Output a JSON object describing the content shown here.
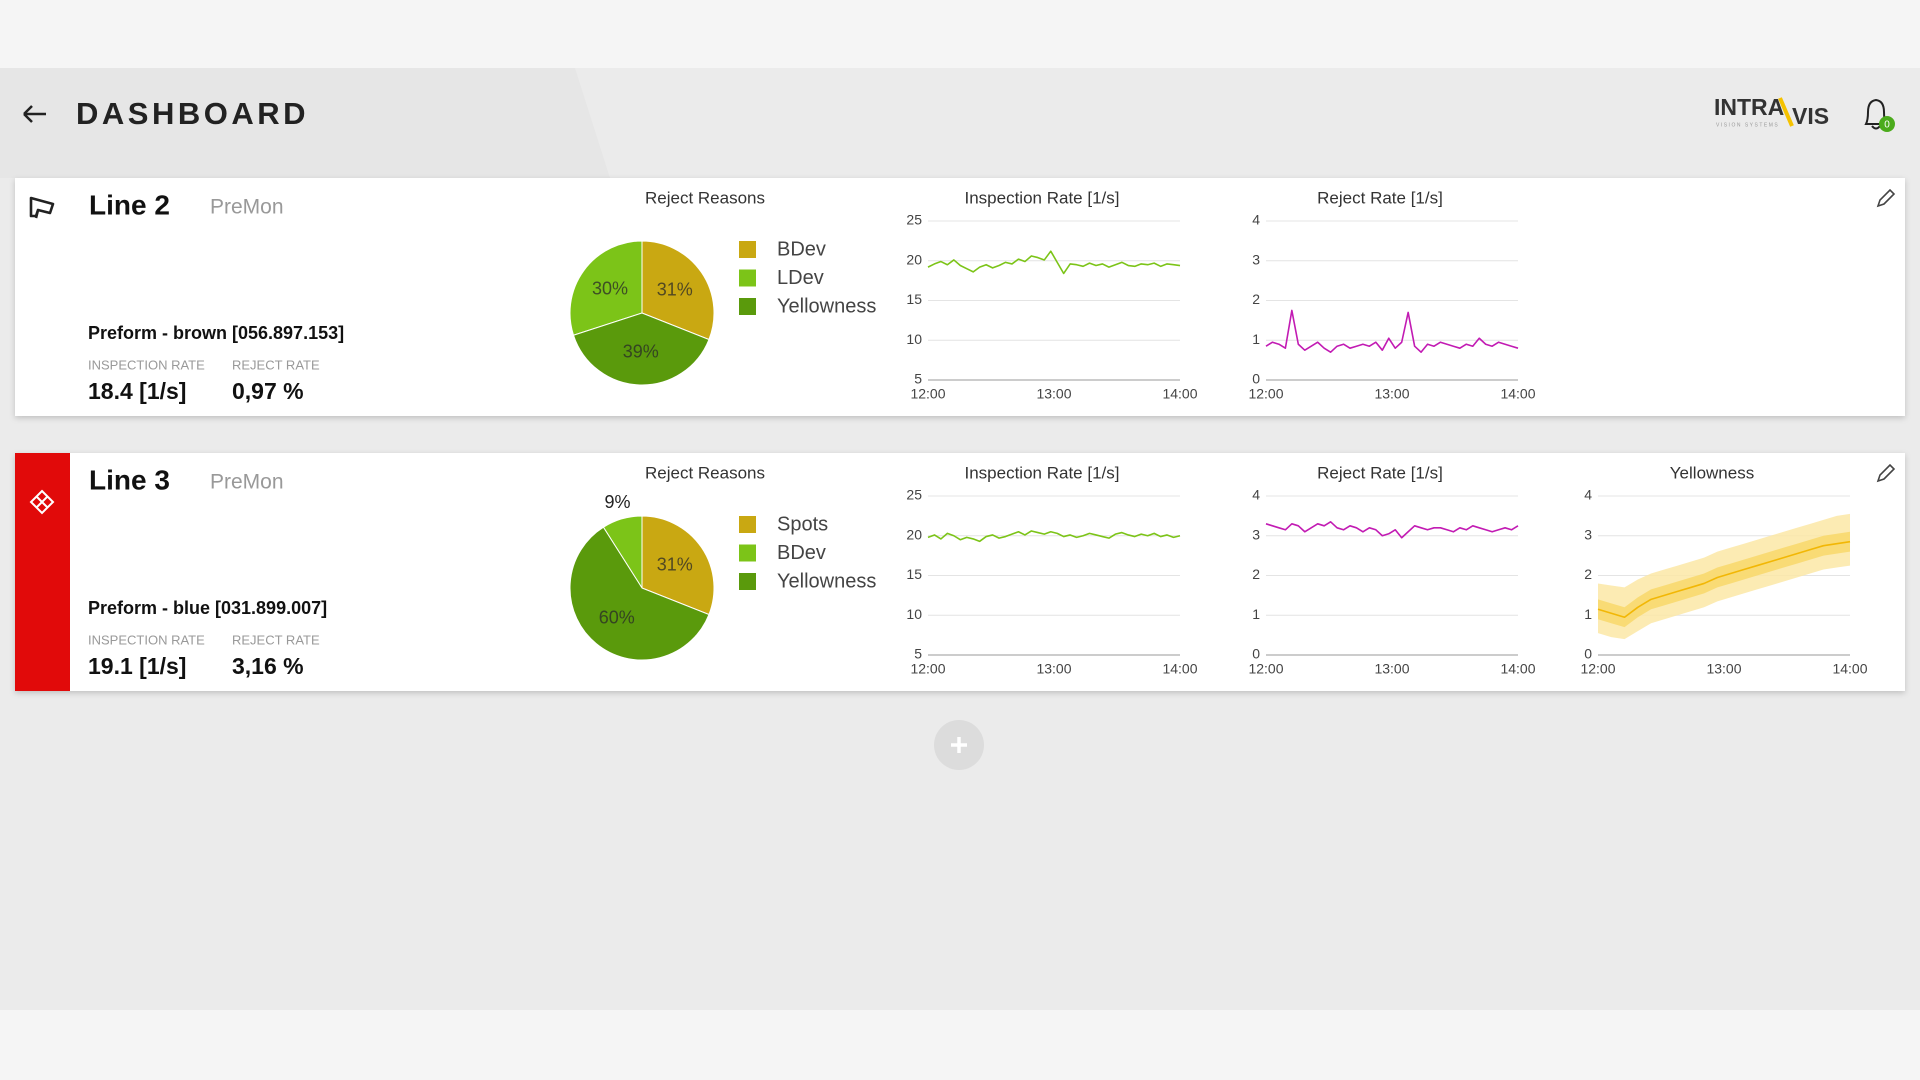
{
  "header": {
    "title": "DASHBOARD",
    "logo": "INTRA",
    "logo_accent": "VIS",
    "logo_tagline": "VISION SYSTEMS",
    "notifications": 0
  },
  "lines": [
    {
      "name": "Line 2",
      "mode": "PreMon",
      "product": "Preform - brown [056.897.153]",
      "stats": [
        {
          "label": "INSPECTION RATE",
          "value": "18.4 [1/s]"
        },
        {
          "label": "REJECT RATE",
          "value": "0,97 %"
        }
      ],
      "charts": [
        {
          "type": "pie",
          "title": "Reject Reasons",
          "categories": [
            "BDev",
            "LDev",
            "Yellowness"
          ],
          "values": [
            31,
            30,
            39
          ],
          "value_labels": [
            "31%",
            "30%",
            "39%"
          ],
          "colors": [
            "#c9a812",
            "#7cc418",
            "#5a9a0c"
          ]
        },
        {
          "type": "line",
          "title": "Inspection Rate [1/s]",
          "x_labels": [
            "12:00",
            "13:00",
            "14:00"
          ],
          "ylim": [
            5,
            25
          ],
          "yticks": [
            5,
            10,
            15,
            20,
            25
          ],
          "grid": true,
          "series": [
            {
              "color": "#7cc418",
              "values": [
                19.2,
                19.6,
                19.9,
                19.5,
                20.1,
                19.4,
                19.0,
                18.6,
                19.2,
                19.5,
                19.1,
                19.4,
                19.8,
                19.6,
                20.2,
                19.9,
                20.6,
                20.4,
                20.1,
                21.2,
                19.8,
                18.4,
                19.6,
                19.5,
                19.3,
                19.7,
                19.4,
                19.6,
                19.2,
                19.5,
                19.8,
                19.4,
                19.3,
                19.6,
                19.5,
                19.7,
                19.3,
                19.6,
                19.5,
                19.4
              ]
            }
          ]
        },
        {
          "type": "line",
          "title": "Reject Rate [1/s]",
          "x_labels": [
            "12:00",
            "13:00",
            "14:00"
          ],
          "ylim": [
            0,
            4
          ],
          "yticks": [
            0,
            1,
            2,
            3,
            4
          ],
          "grid": true,
          "series": [
            {
              "color": "#c21bb3",
              "values": [
                0.85,
                0.95,
                0.9,
                0.8,
                1.75,
                0.9,
                0.75,
                0.85,
                0.95,
                0.8,
                0.7,
                0.85,
                0.9,
                0.8,
                0.85,
                0.9,
                0.85,
                0.95,
                0.75,
                1.05,
                0.8,
                0.95,
                1.7,
                0.85,
                0.7,
                0.9,
                0.85,
                0.95,
                0.9,
                0.85,
                0.8,
                0.9,
                0.85,
                1.05,
                0.9,
                0.85,
                0.95,
                0.9,
                0.85,
                0.8
              ]
            }
          ]
        }
      ]
    },
    {
      "name": "Line 3",
      "mode": "PreMon",
      "product": "Preform - blue [031.899.007]",
      "alarm": true,
      "stats": [
        {
          "label": "INSPECTION RATE",
          "value": "19.1 [1/s]"
        },
        {
          "label": "REJECT RATE",
          "value": "3,16 %"
        }
      ],
      "charts": [
        {
          "type": "pie",
          "title": "Reject Reasons",
          "categories": [
            "Spots",
            "BDev",
            "Yellowness"
          ],
          "values": [
            31,
            9,
            60
          ],
          "value_labels": [
            "31%",
            "9%",
            "60%"
          ],
          "colors": [
            "#c9a812",
            "#7cc418",
            "#5a9a0c"
          ]
        },
        {
          "type": "line",
          "title": "Inspection Rate [1/s]",
          "x_labels": [
            "12:00",
            "13:00",
            "14:00"
          ],
          "ylim": [
            5,
            25
          ],
          "yticks": [
            5,
            10,
            15,
            20,
            25
          ],
          "grid": true,
          "series": [
            {
              "color": "#7cc418",
              "values": [
                19.8,
                20.1,
                19.6,
                20.3,
                20.0,
                19.5,
                19.8,
                19.6,
                19.3,
                19.9,
                20.1,
                19.7,
                19.9,
                20.2,
                20.5,
                20.1,
                20.6,
                20.4,
                20.2,
                20.5,
                20.3,
                19.9,
                20.1,
                19.8,
                20.0,
                20.3,
                20.1,
                19.9,
                19.7,
                20.2,
                20.4,
                20.1,
                19.9,
                20.2,
                20.0,
                20.3,
                19.9,
                20.1,
                19.8,
                20.0
              ]
            }
          ]
        },
        {
          "type": "line",
          "title": "Reject Rate [1/s]",
          "x_labels": [
            "12:00",
            "13:00",
            "14:00"
          ],
          "ylim": [
            0,
            4
          ],
          "yticks": [
            0,
            1,
            2,
            3,
            4
          ],
          "grid": true,
          "series": [
            {
              "color": "#c21bb3",
              "values": [
                3.3,
                3.25,
                3.2,
                3.15,
                3.3,
                3.25,
                3.1,
                3.2,
                3.3,
                3.25,
                3.35,
                3.2,
                3.15,
                3.25,
                3.2,
                3.1,
                3.2,
                3.15,
                3.0,
                3.05,
                3.15,
                2.95,
                3.1,
                3.25,
                3.2,
                3.15,
                3.2,
                3.2,
                3.15,
                3.1,
                3.2,
                3.15,
                3.25,
                3.2,
                3.15,
                3.1,
                3.15,
                3.2,
                3.15,
                3.25
              ]
            }
          ]
        },
        {
          "type": "line",
          "title": "Yellowness",
          "x_labels": [
            "12:00",
            "13:00",
            "14:00"
          ],
          "ylim": [
            0,
            4
          ],
          "yticks": [
            0,
            1,
            2,
            3,
            4
          ],
          "grid": true,
          "bands": [
            {
              "color": "#fbe7a6",
              "lower": [
                0.55,
                0.45,
                0.4,
                0.6,
                0.8,
                0.9,
                1.0,
                1.1,
                1.2,
                1.35,
                1.45,
                1.55,
                1.65,
                1.75,
                1.85,
                1.95,
                2.05,
                2.15,
                2.2,
                2.25
              ],
              "upper": [
                1.8,
                1.75,
                1.7,
                1.9,
                2.05,
                2.15,
                2.25,
                2.35,
                2.45,
                2.6,
                2.7,
                2.8,
                2.9,
                3.0,
                3.1,
                3.2,
                3.3,
                3.4,
                3.5,
                3.55
              ]
            },
            {
              "color": "#f8d86a",
              "lower": [
                0.9,
                0.8,
                0.7,
                0.95,
                1.15,
                1.25,
                1.35,
                1.45,
                1.55,
                1.7,
                1.8,
                1.9,
                2.0,
                2.1,
                2.2,
                2.3,
                2.4,
                2.5,
                2.55,
                2.6
              ],
              "upper": [
                1.4,
                1.3,
                1.2,
                1.45,
                1.65,
                1.75,
                1.85,
                1.95,
                2.05,
                2.2,
                2.3,
                2.4,
                2.5,
                2.6,
                2.7,
                2.8,
                2.9,
                3.0,
                3.05,
                3.1
              ]
            }
          ],
          "series": [
            {
              "color": "#f2b705",
              "values": [
                1.15,
                1.05,
                0.95,
                1.2,
                1.4,
                1.5,
                1.6,
                1.7,
                1.8,
                1.95,
                2.05,
                2.15,
                2.25,
                2.35,
                2.45,
                2.55,
                2.65,
                2.75,
                2.8,
                2.85
              ]
            }
          ]
        }
      ]
    }
  ]
}
